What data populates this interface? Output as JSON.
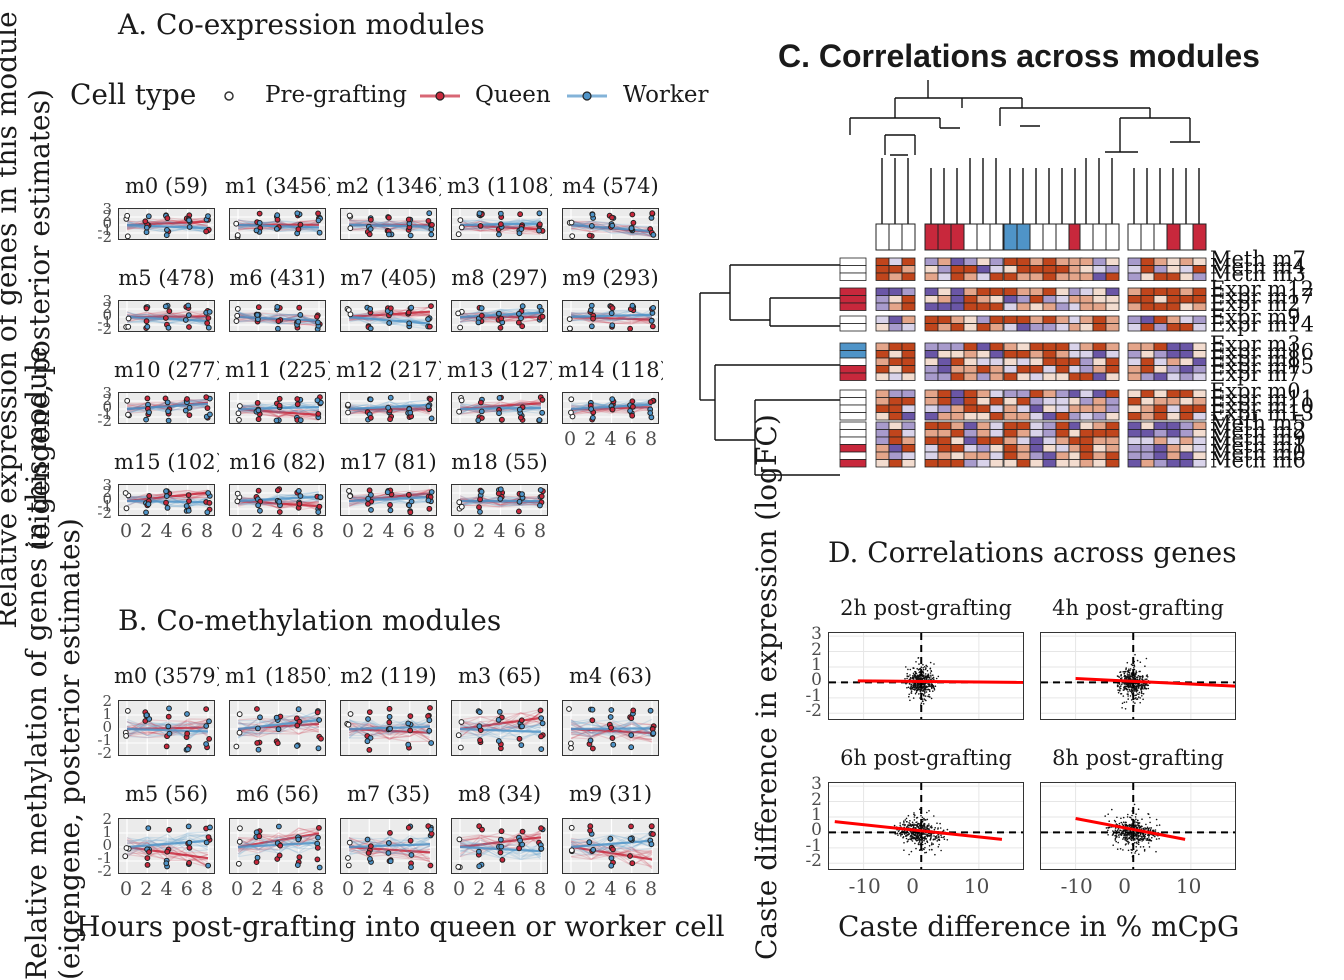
{
  "panelA": {
    "title": "A. Co-expression modules",
    "legend": {
      "title": "Cell type",
      "items": [
        {
          "label": "Pre-grafting",
          "color": "#ffffff"
        },
        {
          "label": "Queen",
          "color": "#c8283c"
        },
        {
          "label": "Worker",
          "color": "#4f94c8"
        }
      ]
    },
    "ylabel_line1": "Relative expression of genes in this module",
    "ylabel_line2": "(eigengene, posterior estimates)",
    "yticks": [
      "3",
      "2",
      "0",
      "-1",
      "-2"
    ],
    "xticks": [
      "0",
      "2",
      "4",
      "6",
      "8"
    ],
    "modules": [
      "m0 (59)",
      "m1 (3456)",
      "m2 (1346)",
      "m3 (1108)",
      "m4 (574)",
      "m5 (478)",
      "m6 (431)",
      "m7 (405)",
      "m8 (297)",
      "m9 (293)",
      "m10 (277)",
      "m11 (225)",
      "m12 (217)",
      "m13 (127)",
      "m14 (118)",
      "m15 (102)",
      "m16 (82)",
      "m17 (81)",
      "m18 (55)"
    ]
  },
  "panelB": {
    "title": "B. Co-methylation modules",
    "ylabel_line1": "Relative methylation of genes in this module",
    "ylabel_line2": "(eigengene, posterior estimates)",
    "xlabel": "Hours post-grafting into queen or worker cell",
    "yticks": [
      "2",
      "1",
      "0",
      "-1",
      "-2"
    ],
    "xticks": [
      "0",
      "2",
      "4",
      "6",
      "8"
    ],
    "modules": [
      "m0 (3579)",
      "m1 (1850)",
      "m2 (119)",
      "m3 (65)",
      "m4 (63)",
      "m5 (56)",
      "m6 (56)",
      "m7 (35)",
      "m8 (34)",
      "m9 (31)"
    ]
  },
  "panelC": {
    "title": "C. Correlations across modules",
    "row_labels": [
      "Meth m7",
      "Meth m4",
      "Meth m3",
      "Expr m12",
      "Expr m17",
      "Expr m2",
      "Expr m9",
      "Expr m14",
      "Expr m3",
      "Expr m16",
      "Expr m8",
      "Expr m15",
      "Expr m7",
      "Expr m0",
      "Expr m11",
      "Expr m10",
      "Expr m13",
      "Meth m5",
      "Meth m2",
      "Meth m9",
      "Meth m1",
      "Meth m0",
      "Meth m6"
    ],
    "colors": {
      "queen": "#c8283c",
      "worker": "#4f94c8",
      "pos": "#c0451c",
      "neg": "#6a56a6"
    }
  },
  "panelD": {
    "title": "D. Correlations across genes",
    "facets": [
      "2h post-grafting",
      "4h post-grafting",
      "6h post-grafting",
      "8h post-grafting"
    ],
    "xlabel": "Caste difference in % mCpG",
    "ylabel": "Caste difference in expression (logFC)",
    "xticks": [
      "-10",
      "0",
      "10"
    ],
    "yticks": [
      "3",
      "2",
      "1",
      "0",
      "-1",
      "-2"
    ],
    "line_color": "#ff0000"
  },
  "chart_data": [
    {
      "type": "line",
      "title": "A. Co-expression modules",
      "xlabel": "Hours post-grafting into queen or worker cell",
      "ylabel": "Relative expression of genes in this module (eigengene, posterior estimates)",
      "x": [
        0,
        2,
        4,
        6,
        8
      ],
      "ylim": [
        -2,
        3
      ],
      "series": [
        {
          "name": "Queen"
        },
        {
          "name": "Worker"
        },
        {
          "name": "Pre-grafting"
        }
      ],
      "facets": [
        "m0 (59)",
        "m1 (3456)",
        "m2 (1346)",
        "m3 (1108)",
        "m4 (574)",
        "m5 (478)",
        "m6 (431)",
        "m7 (405)",
        "m8 (297)",
        "m9 (293)",
        "m10 (277)",
        "m11 (225)",
        "m12 (217)",
        "m13 (127)",
        "m14 (118)",
        "m15 (102)",
        "m16 (82)",
        "m17 (81)",
        "m18 (55)"
      ]
    },
    {
      "type": "line",
      "title": "B. Co-methylation modules",
      "xlabel": "Hours post-grafting into queen or worker cell",
      "ylabel": "Relative methylation of genes in this module (eigengene, posterior estimates)",
      "x": [
        0,
        2,
        4,
        6,
        8
      ],
      "ylim": [
        -2,
        2
      ],
      "facets": [
        "m0 (3579)",
        "m1 (1850)",
        "m2 (119)",
        "m3 (65)",
        "m4 (63)",
        "m5 (56)",
        "m6 (56)",
        "m7 (35)",
        "m8 (34)",
        "m9 (31)"
      ]
    },
    {
      "type": "heatmap",
      "title": "C. Correlations across modules"
    },
    {
      "type": "scatter",
      "title": "D. Correlations across genes",
      "xlabel": "Caste difference in % mCpG",
      "ylabel": "Caste difference in expression (logFC)",
      "xlim": [
        -16,
        18
      ],
      "ylim": [
        -2.5,
        3.2
      ],
      "facets": [
        {
          "name": "2h post-grafting",
          "fit_line": {
            "x": [
              -11,
              18
            ],
            "y": [
              0.1,
              0.0
            ]
          }
        },
        {
          "name": "4h post-grafting",
          "fit_line": {
            "x": [
              -10,
              18
            ],
            "y": [
              0.25,
              -0.25
            ]
          }
        },
        {
          "name": "6h post-grafting",
          "fit_line": {
            "x": [
              -15,
              14
            ],
            "y": [
              0.7,
              -0.45
            ]
          }
        },
        {
          "name": "8h post-grafting",
          "fit_line": {
            "x": [
              -10,
              9
            ],
            "y": [
              0.9,
              -0.45
            ]
          }
        }
      ]
    }
  ]
}
